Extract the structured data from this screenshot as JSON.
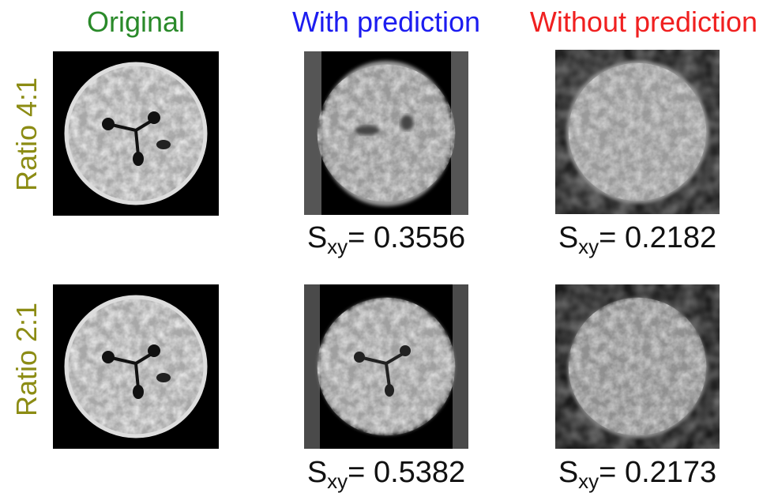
{
  "columns": [
    "Original",
    "With prediction",
    "Without prediction"
  ],
  "rows": [
    {
      "label": "Ratio 4:1",
      "scores": [
        {
          "symbol": "S",
          "subscript": "xy",
          "relation": "=",
          "value": 0.3556
        },
        {
          "symbol": "S",
          "subscript": "xy",
          "relation": "=",
          "value": 0.2182
        }
      ]
    },
    {
      "label": "Ratio 2:1",
      "scores": [
        {
          "symbol": "S",
          "subscript": "xy",
          "relation": "=",
          "value": 0.5382
        },
        {
          "symbol": "S",
          "subscript": "xy",
          "relation": "=",
          "value": 0.2173
        }
      ]
    }
  ]
}
